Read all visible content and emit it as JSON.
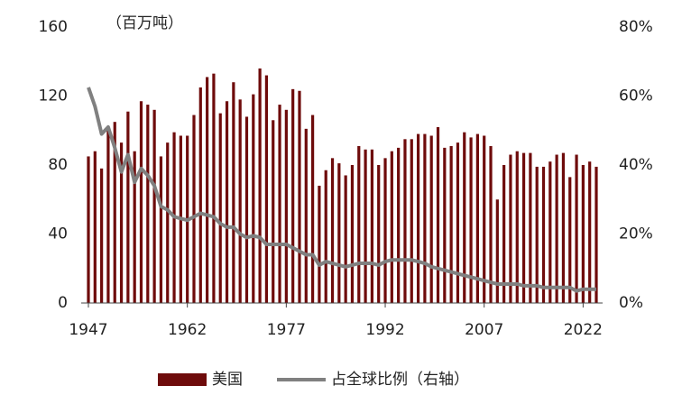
{
  "chart_data": {
    "type": "bar_line",
    "y_unit_label": "（百万吨）",
    "x": [
      1947,
      1948,
      1949,
      1950,
      1951,
      1952,
      1953,
      1954,
      1955,
      1956,
      1957,
      1958,
      1959,
      1960,
      1961,
      1962,
      1963,
      1964,
      1965,
      1966,
      1967,
      1968,
      1969,
      1970,
      1971,
      1972,
      1973,
      1974,
      1975,
      1976,
      1977,
      1978,
      1979,
      1980,
      1981,
      1982,
      1983,
      1984,
      1985,
      1986,
      1987,
      1988,
      1989,
      1990,
      1991,
      1992,
      1993,
      1994,
      1995,
      1996,
      1997,
      1998,
      1999,
      2000,
      2001,
      2002,
      2003,
      2004,
      2005,
      2006,
      2007,
      2008,
      2009,
      2010,
      2011,
      2012,
      2013,
      2014,
      2015,
      2016,
      2017,
      2018,
      2019,
      2020,
      2021,
      2022,
      2023,
      2024
    ],
    "xlim": [
      1947,
      2024
    ],
    "xticks": [
      1947,
      1962,
      1977,
      1992,
      2007,
      2022
    ],
    "ylim": [
      0,
      160
    ],
    "yticks": [
      0,
      40,
      80,
      120,
      160
    ],
    "y2lim": [
      0,
      80
    ],
    "y2ticks": [
      {
        "value": 0,
        "label": "0%"
      },
      {
        "value": 20,
        "label": "20%"
      },
      {
        "value": 40,
        "label": "40%"
      },
      {
        "value": 60,
        "label": "60%"
      },
      {
        "value": 80,
        "label": "80%"
      }
    ],
    "legend": "bottom",
    "series": [
      {
        "name": "美国",
        "type": "bar",
        "color": "#6e0b0b",
        "values": [
          85,
          88,
          78,
          100,
          105,
          93,
          111,
          88,
          117,
          115,
          112,
          85,
          93,
          99,
          97,
          97,
          109,
          125,
          131,
          133,
          110,
          117,
          128,
          118,
          108,
          121,
          136,
          132,
          106,
          115,
          112,
          124,
          123,
          101,
          109,
          68,
          77,
          84,
          81,
          74,
          80,
          91,
          89,
          89,
          80,
          84,
          88,
          90,
          95,
          95,
          98,
          98,
          97,
          102,
          90,
          91,
          93,
          99,
          96,
          98,
          97,
          91,
          60,
          80,
          86,
          88,
          87,
          87,
          79,
          79,
          82,
          86,
          87,
          73,
          86,
          80,
          82,
          79
        ]
      },
      {
        "name": "占全球比例（右轴）",
        "type": "line",
        "axis": "y2",
        "color": "#808080",
        "values": [
          62.5,
          57,
          49,
          51,
          45,
          38,
          43,
          35,
          39,
          37,
          34,
          28,
          27,
          25,
          24.5,
          24,
          25,
          26,
          25.5,
          25,
          23,
          22,
          22,
          20,
          19,
          19.5,
          19,
          17,
          17,
          17,
          17,
          16,
          15,
          14,
          14,
          11,
          12,
          11.5,
          11,
          10.5,
          11,
          11.5,
          11.5,
          11.5,
          11,
          12,
          12.5,
          12.5,
          12.5,
          12.5,
          12,
          11.5,
          10.5,
          10,
          9.5,
          9,
          8.5,
          8,
          7.5,
          7,
          6.5,
          6,
          5.5,
          5.5,
          5.5,
          5.5,
          5,
          5,
          5,
          4.5,
          4.5,
          4.5,
          4.5,
          4.5,
          3.5,
          4,
          4,
          4
        ]
      }
    ]
  }
}
